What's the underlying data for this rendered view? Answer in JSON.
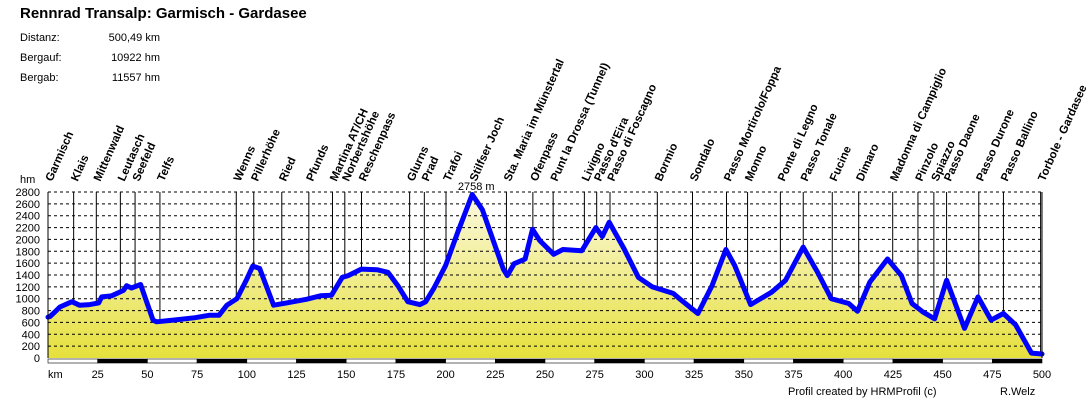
{
  "header": {
    "title": "Rennrad Transalp: Garmisch - Gardasee",
    "stats": [
      {
        "label": "Distanz:",
        "value": "500,49 km"
      },
      {
        "label": "Bergauf:",
        "value": "10922 hm"
      },
      {
        "label": "Bergab:",
        "value": "11557 hm"
      }
    ]
  },
  "footer": {
    "credit": "Profil created by HRMProfil (c)",
    "author": "R.Welz"
  },
  "chart_data": {
    "type": "area",
    "title": "",
    "xlabel": "km",
    "ylabel": "hm",
    "xlim": [
      0,
      500
    ],
    "ylim": [
      0,
      2800
    ],
    "x_ticks": [
      25,
      50,
      75,
      100,
      125,
      150,
      175,
      200,
      225,
      250,
      275,
      300,
      325,
      350,
      375,
      400,
      425,
      450,
      475,
      500
    ],
    "y_ticks": [
      0,
      200,
      400,
      600,
      800,
      1000,
      1200,
      1400,
      1600,
      1800,
      2000,
      2200,
      2400,
      2600,
      2800
    ],
    "grid": true,
    "line_color": "#0000ff",
    "fill_colors": [
      "#fbf9e0",
      "#e6e03c"
    ],
    "max_annotation": {
      "text": "2758 m",
      "km": 213.4,
      "value": 2758,
      "color": "#ff0000"
    },
    "profile": [
      [
        0,
        690
      ],
      [
        1,
        700
      ],
      [
        3.5,
        780
      ],
      [
        6,
        860
      ],
      [
        12,
        950
      ],
      [
        15.8,
        890
      ],
      [
        21,
        900
      ],
      [
        25.5,
        930
      ],
      [
        27,
        1030
      ],
      [
        32,
        1050
      ],
      [
        38,
        1140
      ],
      [
        39.6,
        1220
      ],
      [
        42,
        1180
      ],
      [
        46.6,
        1240
      ],
      [
        52.8,
        640
      ],
      [
        54.6,
        610
      ],
      [
        63,
        640
      ],
      [
        74,
        680
      ],
      [
        81,
        720
      ],
      [
        86,
        720
      ],
      [
        90,
        890
      ],
      [
        95,
        1000
      ],
      [
        100,
        1330
      ],
      [
        103,
        1550
      ],
      [
        106.5,
        1510
      ],
      [
        113.5,
        890
      ],
      [
        120,
        930
      ],
      [
        130,
        990
      ],
      [
        137,
        1050
      ],
      [
        142.6,
        1060
      ],
      [
        148,
        1360
      ],
      [
        151,
        1390
      ],
      [
        157.6,
        1500
      ],
      [
        165.5,
        1490
      ],
      [
        171,
        1445
      ],
      [
        176,
        1220
      ],
      [
        181,
        950
      ],
      [
        187,
        900
      ],
      [
        190,
        950
      ],
      [
        194,
        1170
      ],
      [
        200,
        1560
      ],
      [
        206,
        2110
      ],
      [
        213.4,
        2758
      ],
      [
        218.5,
        2500
      ],
      [
        229,
        1500
      ],
      [
        231,
        1390
      ],
      [
        234.5,
        1590
      ],
      [
        240,
        1670
      ],
      [
        243.7,
        2170
      ],
      [
        247.4,
        1980
      ],
      [
        254.4,
        1750
      ],
      [
        259,
        1830
      ],
      [
        268.5,
        1810
      ],
      [
        275.6,
        2200
      ],
      [
        278.8,
        2050
      ],
      [
        282.3,
        2290
      ],
      [
        289.8,
        1840
      ],
      [
        297,
        1360
      ],
      [
        304,
        1200
      ],
      [
        314.5,
        1090
      ],
      [
        318,
        990
      ],
      [
        326.9,
        750
      ],
      [
        334,
        1220
      ],
      [
        341,
        1830
      ],
      [
        345.4,
        1560
      ],
      [
        353.4,
        900
      ],
      [
        364,
        1110
      ],
      [
        371,
        1310
      ],
      [
        379.9,
        1870
      ],
      [
        387,
        1450
      ],
      [
        394,
        1000
      ],
      [
        402.8,
        920
      ],
      [
        407.2,
        790
      ],
      [
        413.4,
        1280
      ],
      [
        422.3,
        1670
      ],
      [
        429.3,
        1390
      ],
      [
        434.6,
        920
      ],
      [
        440,
        780
      ],
      [
        446,
        660
      ],
      [
        452,
        1310
      ],
      [
        461,
        500
      ],
      [
        467.8,
        1030
      ],
      [
        474.4,
        640
      ],
      [
        480.6,
        750
      ],
      [
        486.7,
        560
      ],
      [
        494.7,
        83
      ],
      [
        500,
        67
      ]
    ],
    "waypoints": [
      {
        "name": "Garmisch",
        "km": 0
      },
      {
        "name": "Klais",
        "km": 12.9
      },
      {
        "name": "Mittenwald",
        "km": 24.3
      },
      {
        "name": "Leutasch",
        "km": 36.4
      },
      {
        "name": "Seefeld",
        "km": 43.8
      },
      {
        "name": "Telfs",
        "km": 56.3
      },
      {
        "name": "Wenns",
        "km": 94.7
      },
      {
        "name": "Pillerhöhe",
        "km": 103.5
      },
      {
        "name": "Ried",
        "km": 117.6
      },
      {
        "name": "Pfunds",
        "km": 131.2
      },
      {
        "name": "Martina AT/CH",
        "km": 143.1
      },
      {
        "name": "Norbertshöhe",
        "km": 149.3
      },
      {
        "name": "Reschenpass",
        "km": 157.7
      },
      {
        "name": "Glurns",
        "km": 181.9
      },
      {
        "name": "Prad",
        "km": 189.3
      },
      {
        "name": "Trafoi",
        "km": 200.2
      },
      {
        "name": "Stilfser Joch",
        "km": 213.4
      },
      {
        "name": "Sta. Maria im Münstertal",
        "km": 230.6
      },
      {
        "name": "Ofenpass",
        "km": 243.9
      },
      {
        "name": "Punt la Drossa (Tunnel)",
        "km": 254.1
      },
      {
        "name": "Livigno",
        "km": 269.8
      },
      {
        "name": "Passo d'Eira",
        "km": 276
      },
      {
        "name": "Passo di Foscagno",
        "km": 282.7
      },
      {
        "name": "Bormio",
        "km": 306.5
      },
      {
        "name": "Sondalo",
        "km": 324.2
      },
      {
        "name": "Passo Mortirolo/Foppa",
        "km": 341.3
      },
      {
        "name": "Monno",
        "km": 351.9
      },
      {
        "name": "Ponte di Legno",
        "km": 368.4
      },
      {
        "name": "Passo Tonale",
        "km": 379.9
      },
      {
        "name": "Fucine",
        "km": 394.5
      },
      {
        "name": "Dimaro",
        "km": 407.8
      },
      {
        "name": "Madonna di Campiglio",
        "km": 424.9
      },
      {
        "name": "Pinzolo",
        "km": 437.6
      },
      {
        "name": "Spiazzo",
        "km": 445.6
      },
      {
        "name": "Passo Daone",
        "km": 452
      },
      {
        "name": "Passo Durone",
        "km": 468.2
      },
      {
        "name": "Passo Ballino",
        "km": 480.6
      },
      {
        "name": "Torbole - Gardasee",
        "km": 499.3
      }
    ]
  }
}
